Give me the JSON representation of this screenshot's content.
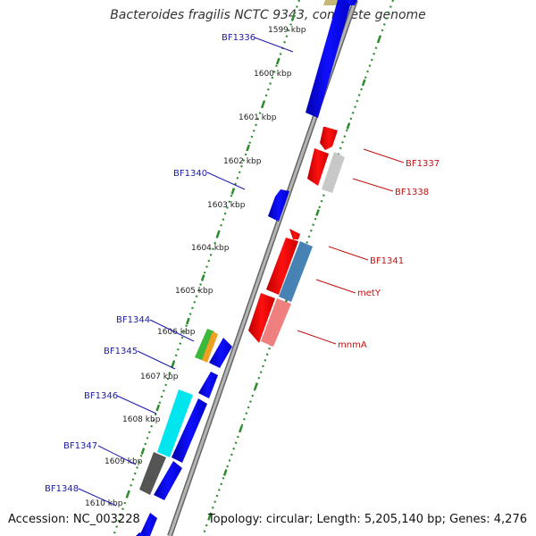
{
  "title": "Bacteroides fragilis NCTC 9343, complete genome",
  "footer": {
    "accession": "Accession: NC_003228",
    "summary": "Topology: circular; Length: 5,205,140 bp; Genes: 4,276"
  },
  "scale_ticks": [
    "1599 kbp",
    "1600 kbp",
    "1601 kbp",
    "1602 kbp",
    "1603 kbp",
    "1604 kbp",
    "1605 kbp",
    "1606 kbp",
    "1607 kbp",
    "1608 kbp",
    "1609 kbp",
    "1610 kbp"
  ],
  "gene_labels_forward": [
    "BF1336",
    "BF1340",
    "BF1344",
    "BF1345",
    "BF1346",
    "BF1347",
    "BF1348"
  ],
  "gene_labels_reverse": [
    "BF1337",
    "BF1338",
    "BF1341",
    "metY",
    "mnmA"
  ],
  "colors": {
    "backbone": "#888888",
    "forward_gene": "#0000ee",
    "reverse_gene": "#ee0000",
    "label_forward": "#1a1aa8",
    "label_reverse": "#c01010",
    "tick_dots": "#2e8b2e",
    "cyan_feature": "#00e5ee",
    "steelblue_feature": "#4682b4",
    "pink_feature": "#f08080",
    "grey_feature": "#bfbfbf",
    "dark_feature": "#555555",
    "green_feature": "#3cb83c",
    "orange_feature": "#f0a020",
    "olive_feature": "#c8b878"
  }
}
